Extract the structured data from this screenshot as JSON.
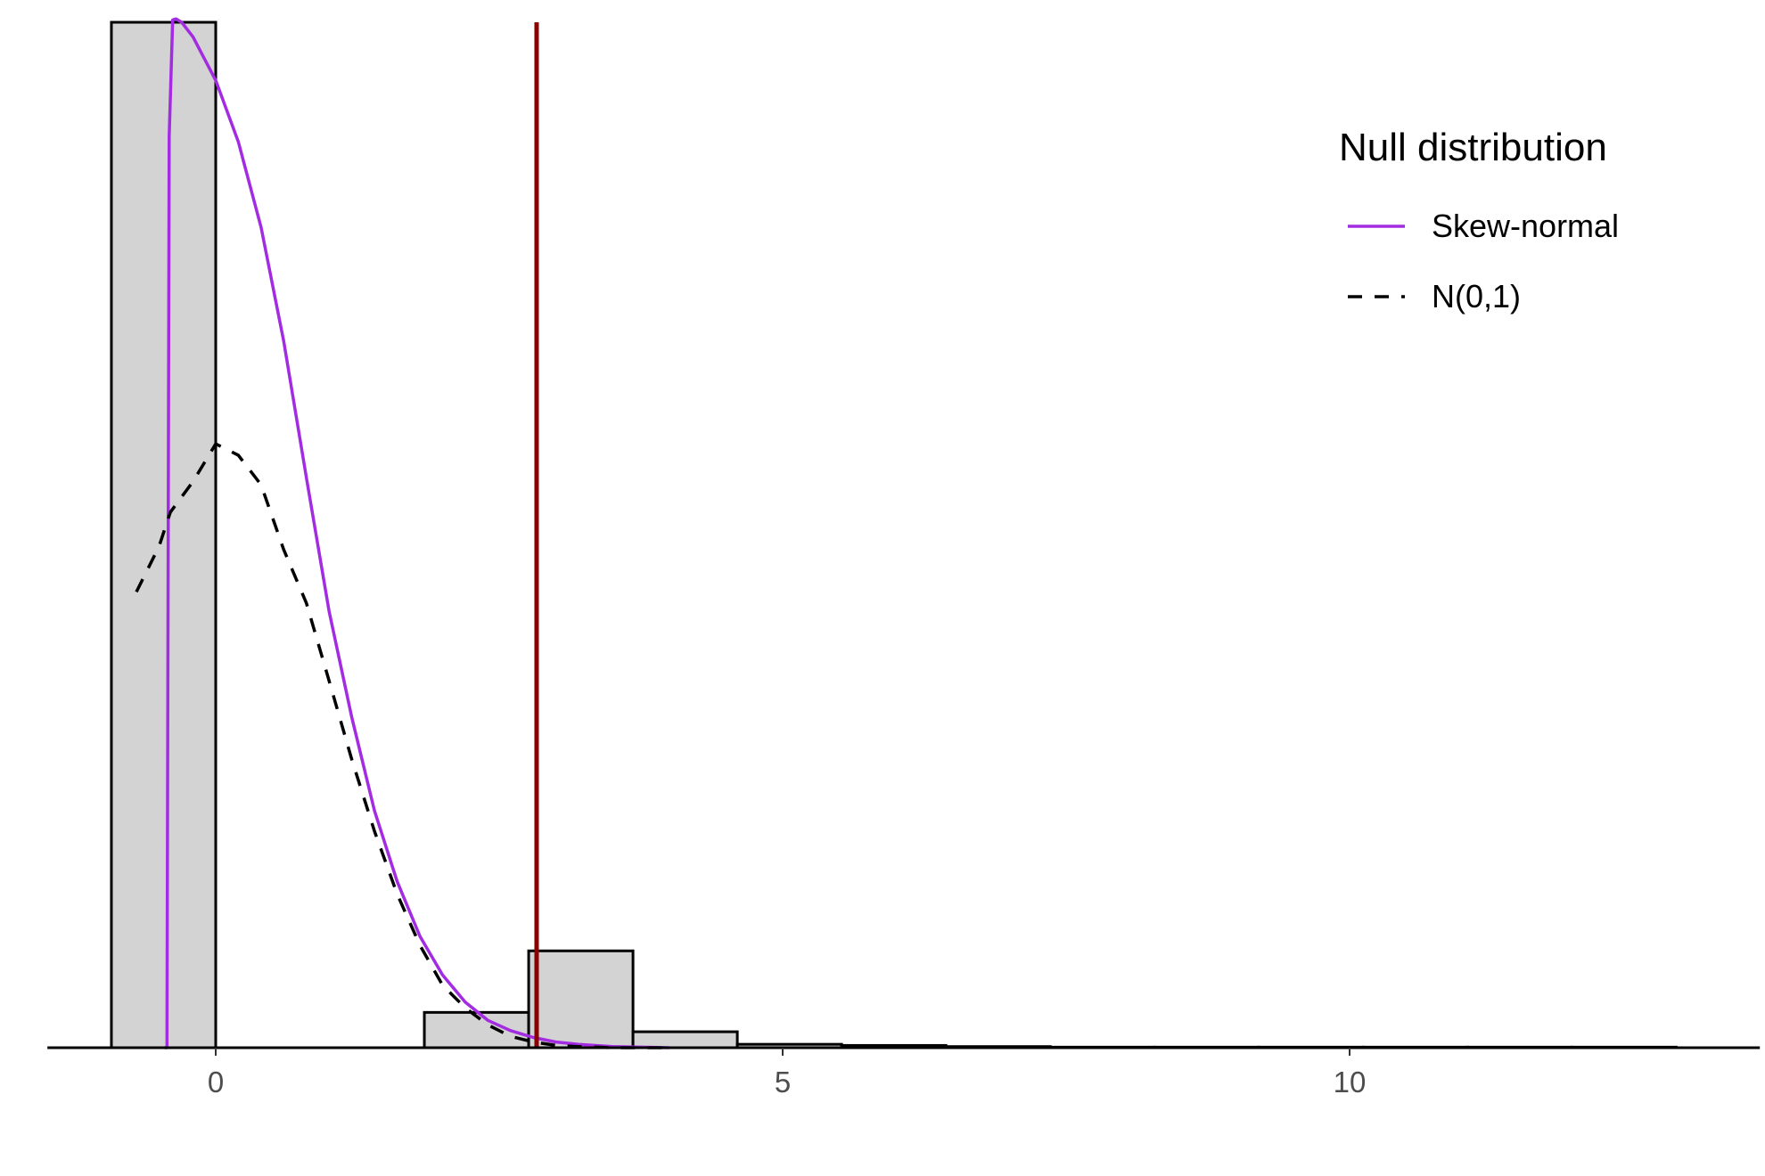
{
  "chart_data": {
    "type": "histogram",
    "xlim": [
      -1.5,
      13.5
    ],
    "ylim": [
      0,
      0.9
    ],
    "x_ticks": [
      {
        "value": 0,
        "label": "0"
      },
      {
        "value": 5,
        "label": "5"
      },
      {
        "value": 10,
        "label": "10"
      }
    ],
    "xlabel": "",
    "ylabel": "",
    "grid": false,
    "legend_position": "top-right",
    "legend": {
      "title": "Null distribution",
      "entries": [
        {
          "label": "Skew-normal",
          "color": "#a32be2",
          "linetype": "solid"
        },
        {
          "label": "N(0,1)",
          "color": "#000000",
          "linetype": "dashed"
        }
      ]
    },
    "histogram": {
      "bin_width": 0.92,
      "fill": "#d3d3d3",
      "outline": "#000000",
      "bins": [
        {
          "left": -0.92,
          "density": 0.9
        },
        {
          "left": 0.0,
          "density": 0.0
        },
        {
          "left": 0.92,
          "density": 0.0
        },
        {
          "left": 1.84,
          "density": 0.031
        },
        {
          "left": 2.76,
          "density": 0.085
        },
        {
          "left": 3.68,
          "density": 0.014
        },
        {
          "left": 4.6,
          "density": 0.003
        },
        {
          "left": 5.52,
          "density": 0.002
        },
        {
          "left": 6.44,
          "density": 0.001
        },
        {
          "left": 7.36,
          "density": 0.0005
        },
        {
          "left": 8.28,
          "density": 0.0005
        },
        {
          "left": 9.2,
          "density": 0.0005
        },
        {
          "left": 10.12,
          "density": 0.0005
        },
        {
          "left": 11.04,
          "density": 0.0005
        },
        {
          "left": 11.96,
          "density": 0.0005
        }
      ]
    },
    "observed_line": {
      "x": 2.83,
      "color": "#8b0000"
    },
    "series": [
      {
        "name": "Skew-normal",
        "color": "#a32be2",
        "dash": "solid",
        "points": [
          [
            -0.45,
            0.0
          ],
          [
            -0.43,
            0.0
          ],
          [
            -0.41,
            0.8
          ],
          [
            -0.38,
            0.902
          ],
          [
            -0.35,
            0.903
          ],
          [
            -0.3,
            0.9
          ],
          [
            -0.2,
            0.887
          ],
          [
            -0.1,
            0.868
          ],
          [
            0.0,
            0.849
          ],
          [
            0.2,
            0.795
          ],
          [
            0.4,
            0.72
          ],
          [
            0.6,
            0.62
          ],
          [
            0.8,
            0.5
          ],
          [
            1.0,
            0.383
          ],
          [
            1.2,
            0.29
          ],
          [
            1.4,
            0.208
          ],
          [
            1.6,
            0.146
          ],
          [
            1.8,
            0.098
          ],
          [
            2.0,
            0.064
          ],
          [
            2.2,
            0.04
          ],
          [
            2.4,
            0.024
          ],
          [
            2.6,
            0.015
          ],
          [
            2.8,
            0.009
          ],
          [
            3.0,
            0.005
          ],
          [
            3.2,
            0.003
          ],
          [
            3.5,
            0.001
          ],
          [
            4.0,
            0.0
          ]
        ]
      },
      {
        "name": "N(0,1)",
        "color": "#000000",
        "dash": "dashed",
        "points": [
          [
            -0.7,
            0.4
          ],
          [
            -0.6,
            0.42
          ],
          [
            -0.5,
            0.44
          ],
          [
            -0.4,
            0.47
          ],
          [
            -0.2,
            0.497
          ],
          [
            0.0,
            0.53
          ],
          [
            0.2,
            0.52
          ],
          [
            0.4,
            0.494
          ],
          [
            0.6,
            0.437
          ],
          [
            0.8,
            0.39
          ],
          [
            1.0,
            0.322
          ],
          [
            1.2,
            0.253
          ],
          [
            1.4,
            0.19
          ],
          [
            1.6,
            0.135
          ],
          [
            1.8,
            0.09
          ],
          [
            2.0,
            0.055
          ],
          [
            2.2,
            0.035
          ],
          [
            2.4,
            0.02
          ],
          [
            2.6,
            0.01
          ],
          [
            2.8,
            0.005
          ],
          [
            3.0,
            0.002
          ],
          [
            3.2,
            0.001
          ],
          [
            3.5,
            0.0
          ],
          [
            4.0,
            0.0
          ]
        ]
      }
    ]
  }
}
